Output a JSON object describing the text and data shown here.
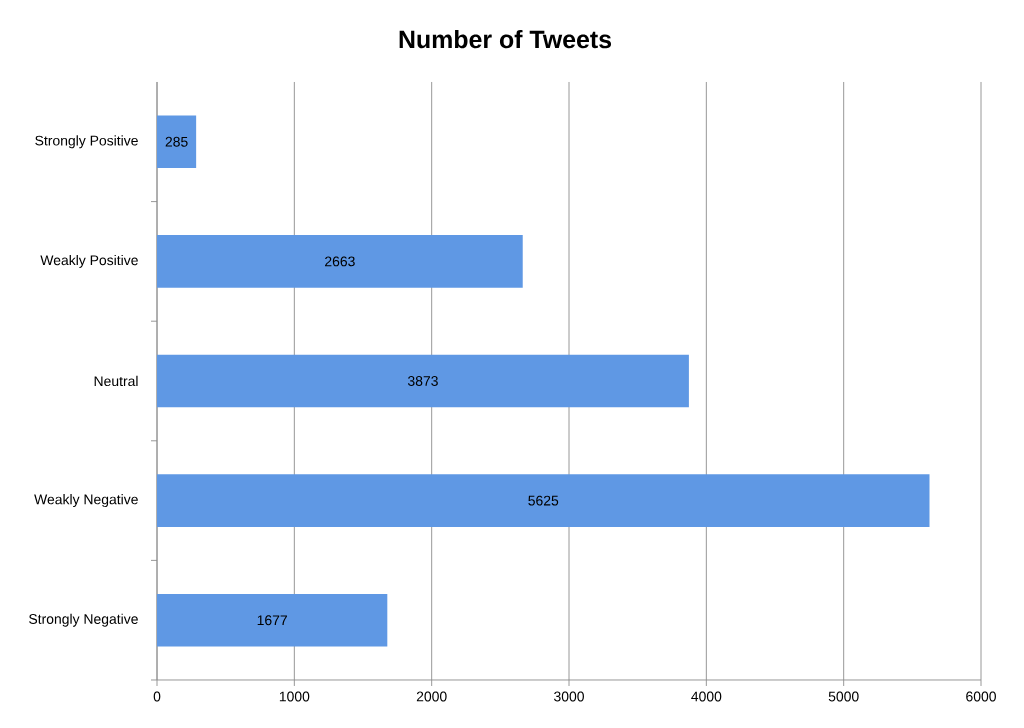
{
  "chart_data": {
    "type": "bar",
    "orientation": "horizontal",
    "title": "Number of Tweets",
    "categories": [
      "Strongly Positive",
      "Weakly Positive",
      "Neutral",
      "Weakly Negative",
      "Strongly Negative"
    ],
    "values": [
      285,
      2663,
      3873,
      5625,
      1677
    ],
    "color": "#5f98e4",
    "xlim": [
      0,
      6000
    ],
    "xticks": [
      0,
      1000,
      2000,
      3000,
      4000,
      5000,
      6000
    ],
    "grid": "x",
    "data_labels": true
  }
}
